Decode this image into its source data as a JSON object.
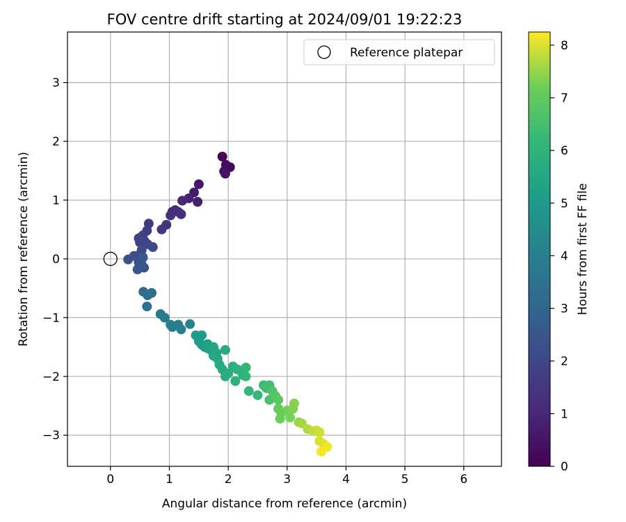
{
  "chart_data": {
    "type": "scatter",
    "title": "FOV centre drift starting at 2024/09/01 19:22:23",
    "xlabel": "Angular distance from reference (arcmin)",
    "ylabel": "Rotation from reference (arcmin)",
    "xlim": [
      -0.73,
      6.64
    ],
    "ylim": [
      -3.53,
      3.86
    ],
    "xticks": [
      0,
      1,
      2,
      3,
      4,
      5,
      6
    ],
    "yticks": [
      -3,
      -2,
      -1,
      0,
      1,
      2,
      3
    ],
    "grid": true,
    "legend": {
      "placement": "top-right",
      "entries": [
        "Reference platepar"
      ]
    },
    "reference_point": {
      "x": 0,
      "y": 0,
      "label": "Reference platepar"
    },
    "colorbar": {
      "label": "Hours from first FF file",
      "colormap": "viridis",
      "range": [
        0,
        8.25
      ],
      "ticks": [
        0,
        1,
        2,
        3,
        4,
        5,
        6,
        7,
        8
      ]
    },
    "points": [
      {
        "x": 1.9,
        "y": 1.74,
        "c": 0.05
      },
      {
        "x": 2.03,
        "y": 1.56,
        "c": 0.15
      },
      {
        "x": 1.96,
        "y": 1.6,
        "c": 0.25
      },
      {
        "x": 1.93,
        "y": 1.49,
        "c": 0.35
      },
      {
        "x": 1.95,
        "y": 1.45,
        "c": 0.45
      },
      {
        "x": 1.5,
        "y": 1.27,
        "c": 0.6
      },
      {
        "x": 1.42,
        "y": 1.13,
        "c": 0.7
      },
      {
        "x": 1.48,
        "y": 0.97,
        "c": 0.8
      },
      {
        "x": 1.33,
        "y": 1.03,
        "c": 0.9
      },
      {
        "x": 1.22,
        "y": 0.99,
        "c": 1.0
      },
      {
        "x": 1.05,
        "y": 0.8,
        "c": 1.1
      },
      {
        "x": 1.1,
        "y": 0.83,
        "c": 1.15
      },
      {
        "x": 1.15,
        "y": 0.8,
        "c": 1.2
      },
      {
        "x": 1.2,
        "y": 0.76,
        "c": 1.25
      },
      {
        "x": 1.02,
        "y": 0.74,
        "c": 1.3
      },
      {
        "x": 0.95,
        "y": 0.58,
        "c": 1.4
      },
      {
        "x": 0.87,
        "y": 0.5,
        "c": 1.5
      },
      {
        "x": 0.65,
        "y": 0.6,
        "c": 1.6
      },
      {
        "x": 0.62,
        "y": 0.48,
        "c": 1.7
      },
      {
        "x": 0.55,
        "y": 0.4,
        "c": 1.8
      },
      {
        "x": 0.48,
        "y": 0.35,
        "c": 1.85
      },
      {
        "x": 0.5,
        "y": 0.28,
        "c": 1.9
      },
      {
        "x": 0.58,
        "y": 0.3,
        "c": 1.95
      },
      {
        "x": 0.63,
        "y": 0.25,
        "c": 2.0
      },
      {
        "x": 0.72,
        "y": 0.2,
        "c": 2.05
      },
      {
        "x": 0.53,
        "y": 0.15,
        "c": 2.1
      },
      {
        "x": 0.45,
        "y": 0.05,
        "c": 2.15
      },
      {
        "x": 0.52,
        "y": 0.06,
        "c": 2.2
      },
      {
        "x": 0.4,
        "y": 0.05,
        "c": 2.25
      },
      {
        "x": 0.3,
        "y": -0.01,
        "c": 2.3
      },
      {
        "x": 0.55,
        "y": 0.03,
        "c": 2.35
      },
      {
        "x": 0.48,
        "y": -0.06,
        "c": 2.4
      },
      {
        "x": 0.53,
        "y": -0.1,
        "c": 2.45
      },
      {
        "x": 0.57,
        "y": -0.15,
        "c": 2.5
      },
      {
        "x": 0.46,
        "y": -0.18,
        "c": 2.55
      },
      {
        "x": 0.55,
        "y": 0.02,
        "c": 2.6
      },
      {
        "x": 0.56,
        "y": -0.56,
        "c": 3.2
      },
      {
        "x": 0.7,
        "y": -0.58,
        "c": 3.3
      },
      {
        "x": 0.63,
        "y": -0.62,
        "c": 3.35
      },
      {
        "x": 0.62,
        "y": -0.81,
        "c": 3.4
      },
      {
        "x": 0.85,
        "y": -0.94,
        "c": 3.7
      },
      {
        "x": 0.92,
        "y": -1.0,
        "c": 3.8
      },
      {
        "x": 1.02,
        "y": -1.12,
        "c": 3.9
      },
      {
        "x": 1.05,
        "y": -1.16,
        "c": 3.95
      },
      {
        "x": 1.15,
        "y": -1.12,
        "c": 4.0
      },
      {
        "x": 1.2,
        "y": -1.2,
        "c": 4.05
      },
      {
        "x": 1.35,
        "y": -1.11,
        "c": 4.15
      },
      {
        "x": 1.45,
        "y": -1.3,
        "c": 5.0
      },
      {
        "x": 1.5,
        "y": -1.4,
        "c": 5.05
      },
      {
        "x": 1.55,
        "y": -1.3,
        "c": 5.1
      },
      {
        "x": 1.55,
        "y": -1.46,
        "c": 5.15
      },
      {
        "x": 1.6,
        "y": -1.5,
        "c": 5.2
      },
      {
        "x": 1.65,
        "y": -1.45,
        "c": 5.25
      },
      {
        "x": 1.65,
        "y": -1.52,
        "c": 5.3
      },
      {
        "x": 1.7,
        "y": -1.55,
        "c": 5.35
      },
      {
        "x": 1.75,
        "y": -1.5,
        "c": 5.4
      },
      {
        "x": 1.8,
        "y": -1.6,
        "c": 5.45
      },
      {
        "x": 1.75,
        "y": -1.65,
        "c": 5.5
      },
      {
        "x": 1.82,
        "y": -1.7,
        "c": 5.55
      },
      {
        "x": 1.85,
        "y": -1.8,
        "c": 5.6
      },
      {
        "x": 1.95,
        "y": -1.55,
        "c": 5.62
      },
      {
        "x": 1.9,
        "y": -1.88,
        "c": 5.65
      },
      {
        "x": 1.95,
        "y": -2.0,
        "c": 5.7
      },
      {
        "x": 2.0,
        "y": -1.95,
        "c": 5.75
      },
      {
        "x": 2.08,
        "y": -1.83,
        "c": 5.8
      },
      {
        "x": 2.12,
        "y": -2.08,
        "c": 5.85
      },
      {
        "x": 2.15,
        "y": -1.88,
        "c": 5.9
      },
      {
        "x": 2.2,
        "y": -1.9,
        "c": 5.95
      },
      {
        "x": 2.25,
        "y": -1.98,
        "c": 6.0
      },
      {
        "x": 2.3,
        "y": -1.85,
        "c": 6.05
      },
      {
        "x": 2.3,
        "y": -2.0,
        "c": 6.1
      },
      {
        "x": 2.35,
        "y": -2.25,
        "c": 6.15
      },
      {
        "x": 2.5,
        "y": -2.32,
        "c": 6.2
      },
      {
        "x": 2.6,
        "y": -2.15,
        "c": 6.3
      },
      {
        "x": 2.65,
        "y": -2.2,
        "c": 6.4
      },
      {
        "x": 2.7,
        "y": -2.15,
        "c": 6.45
      },
      {
        "x": 2.7,
        "y": -2.4,
        "c": 6.6
      },
      {
        "x": 2.75,
        "y": -2.25,
        "c": 6.7
      },
      {
        "x": 2.8,
        "y": -2.33,
        "c": 6.8
      },
      {
        "x": 2.85,
        "y": -2.4,
        "c": 6.9
      },
      {
        "x": 2.85,
        "y": -2.55,
        "c": 7.0
      },
      {
        "x": 2.9,
        "y": -2.62,
        "c": 7.1
      },
      {
        "x": 2.88,
        "y": -2.72,
        "c": 7.15
      },
      {
        "x": 3.0,
        "y": -2.58,
        "c": 7.2
      },
      {
        "x": 3.05,
        "y": -2.7,
        "c": 7.3
      },
      {
        "x": 3.1,
        "y": -2.55,
        "c": 7.35
      },
      {
        "x": 3.12,
        "y": -2.46,
        "c": 7.4
      },
      {
        "x": 3.2,
        "y": -2.78,
        "c": 7.5
      },
      {
        "x": 3.25,
        "y": -2.8,
        "c": 7.6
      },
      {
        "x": 3.35,
        "y": -2.9,
        "c": 7.7
      },
      {
        "x": 3.45,
        "y": -2.93,
        "c": 7.8
      },
      {
        "x": 3.5,
        "y": -2.92,
        "c": 7.85
      },
      {
        "x": 3.55,
        "y": -2.95,
        "c": 7.9
      },
      {
        "x": 3.55,
        "y": -3.1,
        "c": 8.0
      },
      {
        "x": 3.62,
        "y": -3.15,
        "c": 8.05
      },
      {
        "x": 3.68,
        "y": -3.2,
        "c": 8.15
      },
      {
        "x": 3.58,
        "y": -3.28,
        "c": 8.2
      }
    ]
  }
}
